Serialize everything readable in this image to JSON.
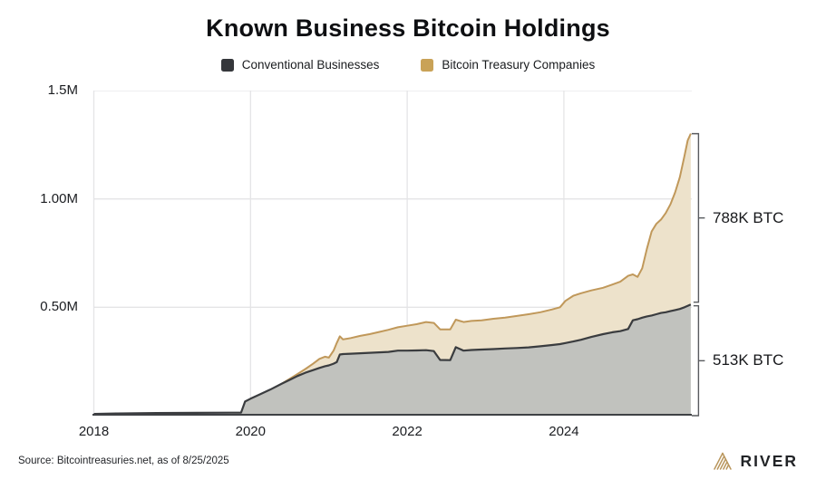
{
  "title": "Known Business Bitcoin Holdings",
  "legend": [
    {
      "label": "Conventional Businesses",
      "color": "#35373b"
    },
    {
      "label": "Bitcoin Treasury Companies",
      "color": "#c9a257"
    }
  ],
  "annotations": {
    "treasury": "788K BTC",
    "conventional": "513K BTC"
  },
  "footer": {
    "source": "Source: Bitcointreasuries.net, as of 8/25/2025",
    "brand": "RIVER"
  },
  "chart_data": {
    "type": "area",
    "stacked": true,
    "series_names": [
      "Conventional Businesses",
      "Bitcoin Treasury Companies"
    ],
    "note": "points are [year, conventional_M_BTC, combined_total_M_BTC]; treasury companies = total - conventional",
    "x_range": [
      2018.0,
      2025.65
    ],
    "y_range": [
      0,
      1.5
    ],
    "x_ticks": [
      2018,
      2020,
      2022,
      2024
    ],
    "y_ticks": [
      {
        "label": "1.5M",
        "value": 1.5
      },
      {
        "label": "1.00M",
        "value": 1.0
      },
      {
        "label": "0.50M",
        "value": 0.5
      }
    ],
    "end_values": {
      "conventional_btc": "513K",
      "treasury_btc": "788K",
      "total_m": 1.301
    },
    "colors": {
      "conv_fill": "#c1c2be",
      "conv_line": "#3a3c3f",
      "treas_fill": "#ede2cb",
      "treas_line": "#c0985a",
      "grid": "#e4e4e6",
      "axis": "#3f4145",
      "bracket": "#595b5f"
    },
    "points": [
      [
        2018.0,
        0.008,
        0.008
      ],
      [
        2018.3,
        0.01,
        0.01
      ],
      [
        2018.8,
        0.012,
        0.012
      ],
      [
        2019.3,
        0.013,
        0.013
      ],
      [
        2019.88,
        0.014,
        0.014
      ],
      [
        2019.93,
        0.065,
        0.065
      ],
      [
        2020.0,
        0.078,
        0.078
      ],
      [
        2020.1,
        0.095,
        0.095
      ],
      [
        2020.25,
        0.12,
        0.12
      ],
      [
        2020.4,
        0.148,
        0.148
      ],
      [
        2020.5,
        0.165,
        0.17
      ],
      [
        2020.6,
        0.183,
        0.192
      ],
      [
        2020.7,
        0.198,
        0.215
      ],
      [
        2020.8,
        0.21,
        0.24
      ],
      [
        2020.88,
        0.22,
        0.262
      ],
      [
        2020.95,
        0.228,
        0.272
      ],
      [
        2021.0,
        0.232,
        0.268
      ],
      [
        2021.06,
        0.24,
        0.3
      ],
      [
        2021.1,
        0.247,
        0.335
      ],
      [
        2021.14,
        0.282,
        0.366
      ],
      [
        2021.18,
        0.284,
        0.352
      ],
      [
        2021.28,
        0.286,
        0.358
      ],
      [
        2021.4,
        0.288,
        0.368
      ],
      [
        2021.52,
        0.29,
        0.376
      ],
      [
        2021.64,
        0.292,
        0.386
      ],
      [
        2021.76,
        0.294,
        0.396
      ],
      [
        2021.88,
        0.3,
        0.408
      ],
      [
        2022.0,
        0.3,
        0.415
      ],
      [
        2022.12,
        0.301,
        0.422
      ],
      [
        2022.24,
        0.302,
        0.432
      ],
      [
        2022.34,
        0.298,
        0.428
      ],
      [
        2022.42,
        0.257,
        0.398
      ],
      [
        2022.55,
        0.256,
        0.398
      ],
      [
        2022.62,
        0.316,
        0.443
      ],
      [
        2022.72,
        0.3,
        0.432
      ],
      [
        2022.82,
        0.303,
        0.437
      ],
      [
        2022.95,
        0.305,
        0.44
      ],
      [
        2023.1,
        0.307,
        0.447
      ],
      [
        2023.25,
        0.31,
        0.452
      ],
      [
        2023.4,
        0.312,
        0.46
      ],
      [
        2023.55,
        0.315,
        0.468
      ],
      [
        2023.7,
        0.32,
        0.477
      ],
      [
        2023.85,
        0.326,
        0.49
      ],
      [
        2023.95,
        0.33,
        0.5
      ],
      [
        2024.02,
        0.335,
        0.53
      ],
      [
        2024.12,
        0.342,
        0.553
      ],
      [
        2024.22,
        0.35,
        0.565
      ],
      [
        2024.35,
        0.363,
        0.578
      ],
      [
        2024.5,
        0.376,
        0.59
      ],
      [
        2024.62,
        0.385,
        0.605
      ],
      [
        2024.72,
        0.39,
        0.618
      ],
      [
        2024.82,
        0.4,
        0.645
      ],
      [
        2024.88,
        0.44,
        0.652
      ],
      [
        2024.94,
        0.445,
        0.64
      ],
      [
        2025.0,
        0.452,
        0.68
      ],
      [
        2025.06,
        0.458,
        0.77
      ],
      [
        2025.12,
        0.462,
        0.85
      ],
      [
        2025.18,
        0.468,
        0.885
      ],
      [
        2025.24,
        0.474,
        0.905
      ],
      [
        2025.3,
        0.477,
        0.935
      ],
      [
        2025.36,
        0.482,
        0.975
      ],
      [
        2025.42,
        0.487,
        1.03
      ],
      [
        2025.48,
        0.492,
        1.1
      ],
      [
        2025.54,
        0.5,
        1.2
      ],
      [
        2025.58,
        0.507,
        1.27
      ],
      [
        2025.62,
        0.513,
        1.301
      ]
    ]
  }
}
